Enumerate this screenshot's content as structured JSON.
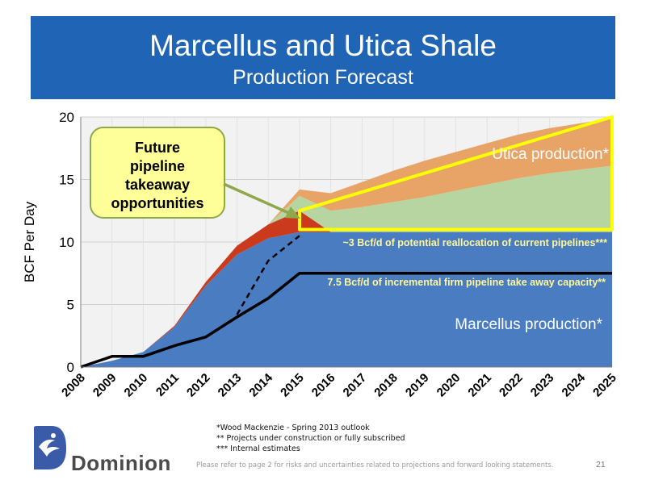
{
  "header": {
    "title": "Marcellus and Utica Shale",
    "subtitle": "Production Forecast"
  },
  "chart_data": {
    "type": "area",
    "ylabel": "BCF Per Day",
    "ylim": [
      0,
      20
    ],
    "yticks": [
      0,
      5,
      10,
      15,
      20
    ],
    "x": [
      "2008",
      "2009",
      "2010",
      "2011",
      "2012",
      "2013",
      "2014",
      "2015",
      "2016",
      "2017",
      "2018",
      "2019",
      "2020",
      "2021",
      "2022",
      "2023",
      "2024",
      "2025"
    ],
    "series": [
      {
        "name": "Marcellus production*",
        "color": "#4a7cc1",
        "values": [
          0,
          0.5,
          1.2,
          3.2,
          6.5,
          9,
          10.3,
          10.8,
          10.8,
          10.8,
          10.8,
          10.8,
          10.8,
          10.8,
          10.8,
          10.8,
          10.8,
          10.8
        ]
      },
      {
        "name": "",
        "color": "#cc3a1e",
        "values": [
          0,
          0,
          0,
          0.1,
          0.3,
          0.7,
          1.1,
          1.7,
          0,
          0,
          0,
          0,
          0,
          0,
          0,
          0,
          0,
          0
        ]
      },
      {
        "name": "",
        "color": "#b7d5a0",
        "values": [
          0,
          0,
          0,
          0,
          0,
          0,
          0,
          1.2,
          1.7,
          2.0,
          2.4,
          2.8,
          3.3,
          3.8,
          4.3,
          4.7,
          5.0,
          5.3
        ]
      },
      {
        "name": "Utica production*",
        "color": "#e8a466",
        "values": [
          0,
          0,
          0,
          0,
          0,
          0,
          0,
          0.5,
          1.4,
          2.0,
          2.5,
          2.9,
          3.1,
          3.3,
          3.5,
          3.6,
          3.7,
          3.8
        ]
      }
    ],
    "lines": [
      {
        "name": "7.5 Bcf/d of incremental firm pipeline take away capacity**",
        "style": "solid",
        "color": "#000000",
        "x": [
          "2008",
          "2009",
          "2010",
          "2011",
          "2012",
          "2013",
          "2014",
          "2015",
          "2025"
        ],
        "values": [
          0,
          0.85,
          0.85,
          1.7,
          2.4,
          4.0,
          5.5,
          7.5,
          7.5
        ]
      },
      {
        "name": "~3 Bcf/d of potential reallocation of current pipelines***",
        "style": "dashed",
        "color": "#000000",
        "x": [
          "2013",
          "2014",
          "2015"
        ],
        "values": [
          4.2,
          8.5,
          10.5
        ]
      }
    ],
    "callout": "Future pipeline takeaway opportunities",
    "highlight_color": "#ffff00"
  },
  "footnotes": [
    "*Wood Mackenzie - Spring 2013 outlook",
    "** Projects under construction or fully subscribed",
    "*** Internal estimates"
  ],
  "disclaimer": "Please refer to page 2 for risks and uncertainties related to projections and forward looking statements.",
  "page_number": "21",
  "logo": {
    "name": "Dominion",
    "icon": "dominion-logo-icon",
    "color": "#3a5ba8"
  }
}
